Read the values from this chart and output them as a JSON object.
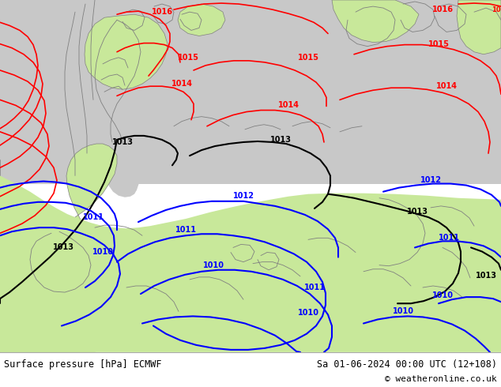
{
  "title_left": "Surface pressure [hPa] ECMWF",
  "title_right": "Sa 01-06-2024 00:00 UTC (12+108)",
  "copyright": "© weatheronline.co.uk",
  "bg_color": "#c8e89a",
  "sea_color": "#c8c8c8",
  "red_color": "#ff0000",
  "black_color": "#000000",
  "blue_color": "#0000ff",
  "coast_color": "#808080",
  "footer_bg": "#ffffff",
  "label_fontsize": 7
}
